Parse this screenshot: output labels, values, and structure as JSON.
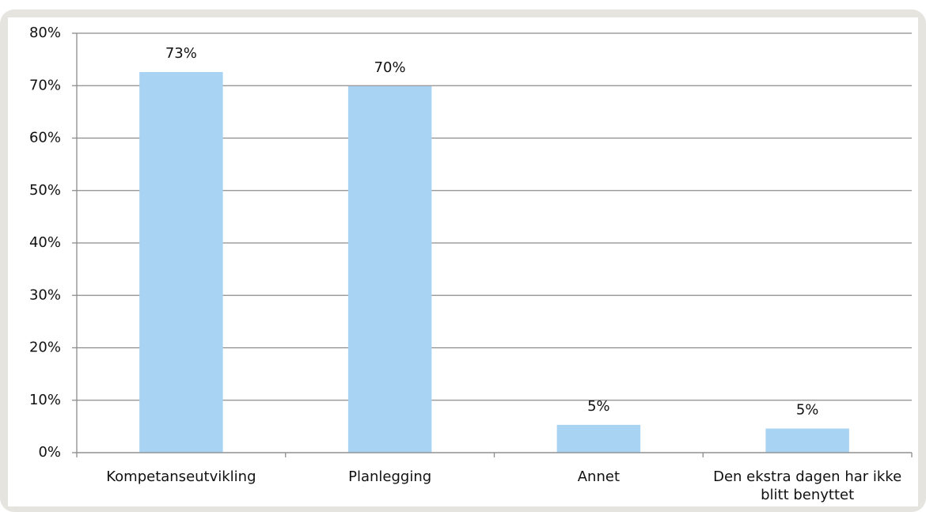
{
  "chart_data": {
    "type": "bar",
    "categories": [
      "Kompetanseutvikling",
      "Planlegging",
      "Annet",
      "Den ekstra dagen har ikke blitt benyttet"
    ],
    "values": [
      72.6,
      69.9,
      5.3,
      4.6
    ],
    "value_labels": [
      "73%",
      "70%",
      "5%",
      "5%"
    ],
    "color": "#a9d3f3",
    "ylim": [
      0,
      80
    ],
    "yticks": [
      {
        "value": 0,
        "label": "0%"
      },
      {
        "value": 10,
        "label": "10%"
      },
      {
        "value": 20,
        "label": "20%"
      },
      {
        "value": 30,
        "label": "30%"
      },
      {
        "value": 40,
        "label": "40%"
      },
      {
        "value": 50,
        "label": "50%"
      },
      {
        "value": 60,
        "label": "60%"
      },
      {
        "value": 70,
        "label": "70%"
      },
      {
        "value": 80,
        "label": "80%"
      }
    ],
    "grid": true
  }
}
